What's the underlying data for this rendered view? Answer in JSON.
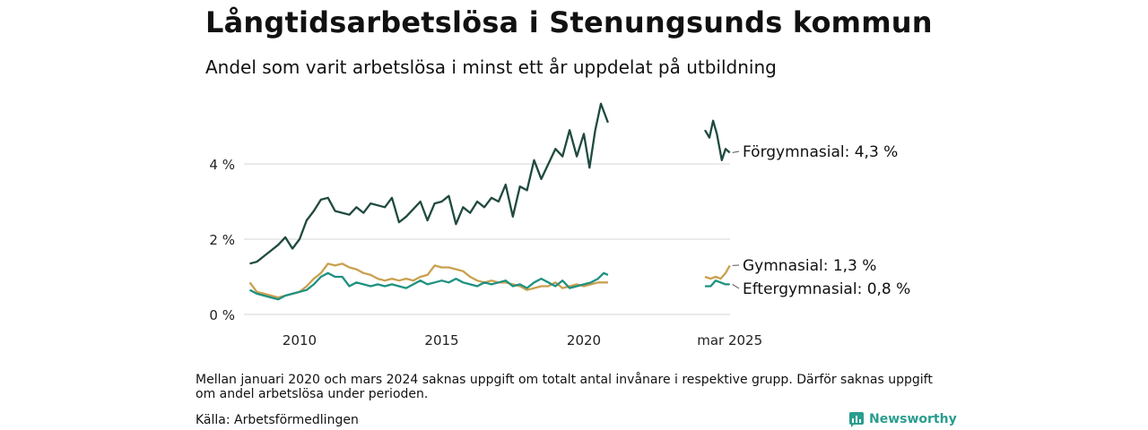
{
  "title": "Långtidsarbetslösa i Stenungsunds kommun",
  "subtitle": "Andel som varit arbetslösa i minst ett år uppdelat på utbildning",
  "note": "Mellan januari 2020 och mars 2024 saknas uppgift om totalt antal invånare i respektive grupp. Därför saknas uppgift om andel arbetslösa under perioden.",
  "source": "Källa: Arbetsförmedlingen",
  "brand": "Newsworthy",
  "chart_data": {
    "type": "line",
    "ylim": [
      0,
      5.6
    ],
    "yticks": [
      {
        "v": 0,
        "label": "0 %"
      },
      {
        "v": 2,
        "label": "2 %"
      },
      {
        "v": 4,
        "label": "4 %"
      }
    ],
    "xticks": [
      {
        "v": 2010,
        "label": "2010"
      },
      {
        "v": 2015,
        "label": "2015"
      },
      {
        "v": 2020,
        "label": "2020"
      },
      {
        "v": 2025.17,
        "label": "mar 2025"
      }
    ],
    "grid": "horizontal",
    "series": [
      {
        "name": "Förgymnasial",
        "end_label": "Förgymnasial: 4,3 %",
        "color": "#1f4a40",
        "points": [
          [
            2008.25,
            1.35
          ],
          [
            2008.5,
            1.4
          ],
          [
            2008.75,
            1.55
          ],
          [
            2009.0,
            1.7
          ],
          [
            2009.25,
            1.85
          ],
          [
            2009.5,
            2.05
          ],
          [
            2009.75,
            1.75
          ],
          [
            2010.0,
            2.0
          ],
          [
            2010.25,
            2.5
          ],
          [
            2010.5,
            2.75
          ],
          [
            2010.75,
            3.05
          ],
          [
            2011.0,
            3.1
          ],
          [
            2011.25,
            2.75
          ],
          [
            2011.5,
            2.7
          ],
          [
            2011.75,
            2.65
          ],
          [
            2012.0,
            2.85
          ],
          [
            2012.25,
            2.7
          ],
          [
            2012.5,
            2.95
          ],
          [
            2012.75,
            2.9
          ],
          [
            2013.0,
            2.85
          ],
          [
            2013.25,
            3.1
          ],
          [
            2013.5,
            2.45
          ],
          [
            2013.75,
            2.6
          ],
          [
            2014.0,
            2.8
          ],
          [
            2014.25,
            3.0
          ],
          [
            2014.5,
            2.5
          ],
          [
            2014.75,
            2.95
          ],
          [
            2015.0,
            3.0
          ],
          [
            2015.25,
            3.15
          ],
          [
            2015.5,
            2.4
          ],
          [
            2015.75,
            2.85
          ],
          [
            2016.0,
            2.7
          ],
          [
            2016.25,
            3.0
          ],
          [
            2016.5,
            2.85
          ],
          [
            2016.75,
            3.1
          ],
          [
            2017.0,
            3.0
          ],
          [
            2017.25,
            3.45
          ],
          [
            2017.5,
            2.6
          ],
          [
            2017.75,
            3.4
          ],
          [
            2018.0,
            3.3
          ],
          [
            2018.25,
            4.1
          ],
          [
            2018.5,
            3.6
          ],
          [
            2018.75,
            4.0
          ],
          [
            2019.0,
            4.4
          ],
          [
            2019.25,
            4.2
          ],
          [
            2019.5,
            4.9
          ],
          [
            2019.75,
            4.2
          ],
          [
            2020.0,
            4.8
          ],
          [
            2020.2,
            3.9
          ],
          [
            2020.4,
            4.9
          ],
          [
            2020.6,
            5.6
          ],
          [
            2020.85,
            5.1
          ]
        ],
        "points_recent": [
          [
            2024.17,
            4.9
          ],
          [
            2024.35,
            4.7
          ],
          [
            2024.5,
            5.15
          ],
          [
            2024.65,
            4.8
          ],
          [
            2024.85,
            4.1
          ],
          [
            2025.0,
            4.4
          ],
          [
            2025.17,
            4.3
          ]
        ]
      },
      {
        "name": "Gymnasial",
        "end_label": "Gymnasial: 1,3 %",
        "color": "#c9a04e",
        "points": [
          [
            2008.25,
            0.85
          ],
          [
            2008.5,
            0.6
          ],
          [
            2008.75,
            0.55
          ],
          [
            2009.0,
            0.5
          ],
          [
            2009.25,
            0.45
          ],
          [
            2009.5,
            0.5
          ],
          [
            2009.75,
            0.55
          ],
          [
            2010.0,
            0.6
          ],
          [
            2010.25,
            0.75
          ],
          [
            2010.5,
            0.95
          ],
          [
            2010.75,
            1.1
          ],
          [
            2011.0,
            1.35
          ],
          [
            2011.25,
            1.3
          ],
          [
            2011.5,
            1.35
          ],
          [
            2011.75,
            1.25
          ],
          [
            2012.0,
            1.2
          ],
          [
            2012.25,
            1.1
          ],
          [
            2012.5,
            1.05
          ],
          [
            2012.75,
            0.95
          ],
          [
            2013.0,
            0.9
          ],
          [
            2013.25,
            0.95
          ],
          [
            2013.5,
            0.9
          ],
          [
            2013.75,
            0.95
          ],
          [
            2014.0,
            0.9
          ],
          [
            2014.25,
            1.0
          ],
          [
            2014.5,
            1.05
          ],
          [
            2014.75,
            1.3
          ],
          [
            2015.0,
            1.25
          ],
          [
            2015.25,
            1.25
          ],
          [
            2015.5,
            1.2
          ],
          [
            2015.75,
            1.15
          ],
          [
            2016.0,
            1.0
          ],
          [
            2016.25,
            0.9
          ],
          [
            2016.5,
            0.85
          ],
          [
            2016.75,
            0.9
          ],
          [
            2017.0,
            0.85
          ],
          [
            2017.25,
            0.85
          ],
          [
            2017.5,
            0.8
          ],
          [
            2017.75,
            0.75
          ],
          [
            2018.0,
            0.65
          ],
          [
            2018.25,
            0.7
          ],
          [
            2018.5,
            0.75
          ],
          [
            2018.75,
            0.75
          ],
          [
            2019.0,
            0.85
          ],
          [
            2019.25,
            0.7
          ],
          [
            2019.5,
            0.75
          ],
          [
            2019.75,
            0.8
          ],
          [
            2020.0,
            0.75
          ],
          [
            2020.25,
            0.8
          ],
          [
            2020.5,
            0.85
          ],
          [
            2020.85,
            0.85
          ]
        ],
        "points_recent": [
          [
            2024.17,
            1.0
          ],
          [
            2024.4,
            0.95
          ],
          [
            2024.6,
            1.0
          ],
          [
            2024.8,
            0.95
          ],
          [
            2025.0,
            1.1
          ],
          [
            2025.17,
            1.3
          ]
        ]
      },
      {
        "name": "Eftergymnasial",
        "end_label": "Eftergymnasial: 0,8 %",
        "color": "#1f9182",
        "points": [
          [
            2008.25,
            0.65
          ],
          [
            2008.5,
            0.55
          ],
          [
            2008.75,
            0.5
          ],
          [
            2009.0,
            0.45
          ],
          [
            2009.25,
            0.4
          ],
          [
            2009.5,
            0.5
          ],
          [
            2009.75,
            0.55
          ],
          [
            2010.0,
            0.6
          ],
          [
            2010.25,
            0.65
          ],
          [
            2010.5,
            0.8
          ],
          [
            2010.75,
            1.0
          ],
          [
            2011.0,
            1.1
          ],
          [
            2011.25,
            1.0
          ],
          [
            2011.5,
            1.0
          ],
          [
            2011.75,
            0.75
          ],
          [
            2012.0,
            0.85
          ],
          [
            2012.25,
            0.8
          ],
          [
            2012.5,
            0.75
          ],
          [
            2012.75,
            0.8
          ],
          [
            2013.0,
            0.75
          ],
          [
            2013.25,
            0.8
          ],
          [
            2013.5,
            0.75
          ],
          [
            2013.75,
            0.7
          ],
          [
            2014.0,
            0.8
          ],
          [
            2014.25,
            0.9
          ],
          [
            2014.5,
            0.8
          ],
          [
            2014.75,
            0.85
          ],
          [
            2015.0,
            0.9
          ],
          [
            2015.25,
            0.85
          ],
          [
            2015.5,
            0.95
          ],
          [
            2015.75,
            0.85
          ],
          [
            2016.0,
            0.8
          ],
          [
            2016.25,
            0.75
          ],
          [
            2016.5,
            0.85
          ],
          [
            2016.75,
            0.8
          ],
          [
            2017.0,
            0.85
          ],
          [
            2017.25,
            0.9
          ],
          [
            2017.5,
            0.75
          ],
          [
            2017.75,
            0.8
          ],
          [
            2018.0,
            0.7
          ],
          [
            2018.25,
            0.85
          ],
          [
            2018.5,
            0.95
          ],
          [
            2018.75,
            0.85
          ],
          [
            2019.0,
            0.75
          ],
          [
            2019.25,
            0.9
          ],
          [
            2019.5,
            0.7
          ],
          [
            2019.75,
            0.75
          ],
          [
            2020.0,
            0.8
          ],
          [
            2020.25,
            0.85
          ],
          [
            2020.5,
            0.95
          ],
          [
            2020.7,
            1.1
          ],
          [
            2020.85,
            1.05
          ]
        ],
        "points_recent": [
          [
            2024.17,
            0.75
          ],
          [
            2024.4,
            0.75
          ],
          [
            2024.6,
            0.9
          ],
          [
            2024.8,
            0.85
          ],
          [
            2025.0,
            0.8
          ],
          [
            2025.17,
            0.8
          ]
        ]
      }
    ]
  }
}
